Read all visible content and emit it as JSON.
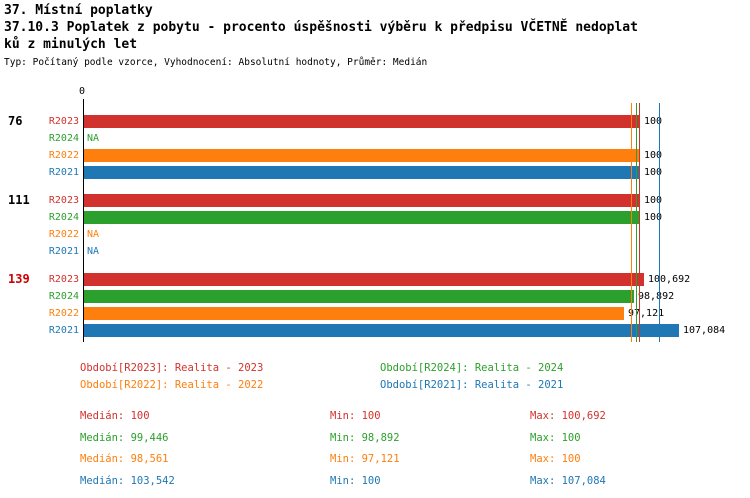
{
  "header": {
    "title": "37. Místní poplatky",
    "subtitle_line1": "37.10.3 Poplatek z pobytu - procento úspěšnosti výběru k předpisu VČETNĚ nedoplat",
    "subtitle_line2": "ků z minulých let",
    "meta": "Typ: Počítaný podle vzorce, Vyhodnocení: Absolutní hodnoty, Průměr: Medián"
  },
  "colors": {
    "R2023": "#d2322d",
    "R2024": "#2ca02c",
    "R2022": "#ff7f0e",
    "R2021": "#1f77b4",
    "highlight": "#cc0000",
    "text": "#000000"
  },
  "chart_data": {
    "type": "bar",
    "orientation": "horizontal",
    "unit": "percent",
    "axis": {
      "origin_label": "0",
      "min": 0,
      "max": 108
    },
    "series_order": [
      "R2023",
      "R2024",
      "R2022",
      "R2021"
    ],
    "groups": [
      {
        "label": "76",
        "highlight": false,
        "bars": [
          {
            "series": "R2023",
            "value": 100,
            "display": "100"
          },
          {
            "series": "R2024",
            "value": null,
            "display": "NA"
          },
          {
            "series": "R2022",
            "value": 100,
            "display": "100"
          },
          {
            "series": "R2021",
            "value": 100,
            "display": "100"
          }
        ]
      },
      {
        "label": "111",
        "highlight": false,
        "bars": [
          {
            "series": "R2023",
            "value": 100,
            "display": "100"
          },
          {
            "series": "R2024",
            "value": 100,
            "display": "100"
          },
          {
            "series": "R2022",
            "value": null,
            "display": "NA"
          },
          {
            "series": "R2021",
            "value": null,
            "display": "NA"
          }
        ]
      },
      {
        "label": "139",
        "highlight": true,
        "bars": [
          {
            "series": "R2023",
            "value": 100.692,
            "display": "100,692"
          },
          {
            "series": "R2024",
            "value": 98.892,
            "display": "98,892"
          },
          {
            "series": "R2022",
            "value": 97.121,
            "display": "97,121"
          },
          {
            "series": "R2021",
            "value": 107.084,
            "display": "107,084"
          }
        ]
      }
    ],
    "median_lines": [
      {
        "series": "R2023",
        "value": 100
      },
      {
        "series": "R2024",
        "value": 99.446
      },
      {
        "series": "R2022",
        "value": 98.561
      },
      {
        "series": "R2021",
        "value": 103.542
      }
    ]
  },
  "legend": [
    {
      "series": "R2023",
      "label": "Období[R2023]: Realita - 2023"
    },
    {
      "series": "R2024",
      "label": "Období[R2024]: Realita - 2024"
    },
    {
      "series": "R2022",
      "label": "Období[R2022]: Realita - 2022"
    },
    {
      "series": "R2021",
      "label": "Období[R2021]: Realita - 2021"
    }
  ],
  "stats_rows": [
    {
      "series": "R2023",
      "median": "Medián: 100",
      "min": "Min: 100",
      "max": "Max: 100,692"
    },
    {
      "series": "R2024",
      "median": "Medián: 99,446",
      "min": "Min: 98,892",
      "max": "Max: 100"
    },
    {
      "series": "R2022",
      "median": "Medián: 98,561",
      "min": "Min: 97,121",
      "max": "Max: 100"
    },
    {
      "series": "R2021",
      "median": "Medián: 103,542",
      "min": "Min: 100",
      "max": "Max: 107,084"
    }
  ]
}
